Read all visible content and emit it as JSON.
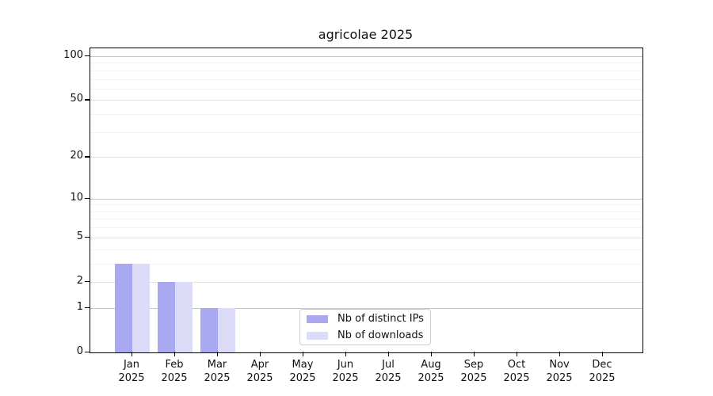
{
  "chart_data": {
    "type": "bar",
    "title": "agricolae 2025",
    "categories": [
      "Jan",
      "Feb",
      "Mar",
      "Apr",
      "May",
      "Jun",
      "Jul",
      "Aug",
      "Sep",
      "Oct",
      "Nov",
      "Dec"
    ],
    "category_year": "2025",
    "series": [
      {
        "name": "Nb of distinct IPs",
        "color": "#a9a9f2",
        "values": [
          3,
          2,
          1,
          0,
          0,
          0,
          0,
          0,
          0,
          0,
          0,
          0
        ]
      },
      {
        "name": "Nb of downloads",
        "color": "#dcdcf8",
        "values": [
          3,
          2,
          1,
          0,
          0,
          0,
          0,
          0,
          0,
          0,
          0,
          0
        ]
      }
    ],
    "xlabel": "",
    "ylabel": "",
    "yscale": "log1p",
    "ylim": [
      0,
      113
    ],
    "yticks": [
      0,
      1,
      2,
      5,
      10,
      20,
      50,
      100
    ],
    "yticks_minor": [
      3,
      4,
      6,
      7,
      8,
      9,
      30,
      40,
      60,
      70,
      80,
      90
    ],
    "grid": true,
    "legend_position": "lower center",
    "colors": {
      "grid_decade": "#c6c6c6",
      "grid_major": "#e4e4e4",
      "grid_minor": "#f3f3f3",
      "axis": "#000000",
      "background": "#ffffff"
    }
  }
}
